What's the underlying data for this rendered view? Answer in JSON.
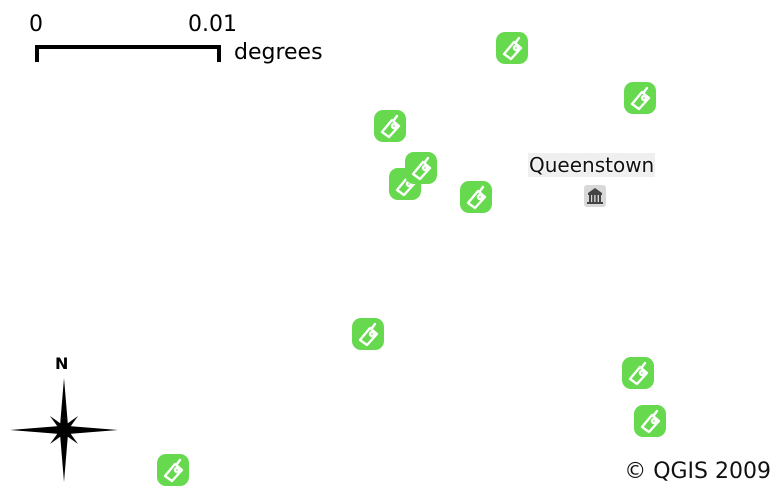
{
  "scale_bar": {
    "start_label": "0",
    "end_label": "0.01",
    "units": "degrees"
  },
  "town": {
    "name": "Queenstown",
    "icon": "town-hall-icon"
  },
  "north_arrow": {
    "label": "N"
  },
  "copyright": "© QGIS 2009",
  "marker_icon": "camping-tag-icon",
  "marker_color": "#66d94f",
  "markers_count_visible": 11
}
